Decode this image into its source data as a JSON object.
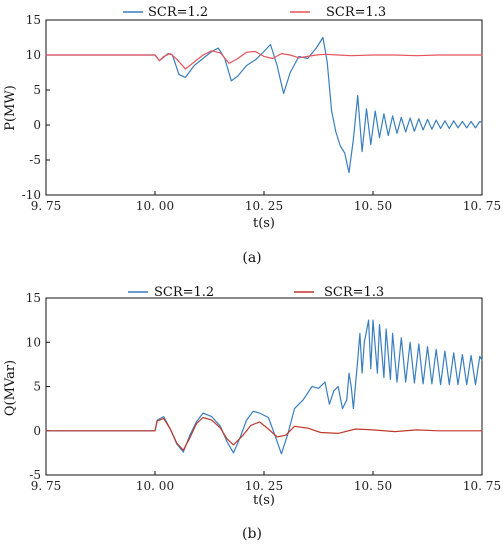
{
  "chart_data": [
    {
      "type": "line",
      "caption": "(a)",
      "xlabel": "t(s)",
      "ylabel": "P(MW)",
      "xlim": [
        9.75,
        10.75
      ],
      "ylim": [
        -10,
        15
      ],
      "xticks": [
        9.75,
        10.0,
        10.25,
        10.5,
        10.75
      ],
      "xtick_labels": [
        "9. 75",
        "10. 00",
        "10. 25",
        "10. 50",
        "10. 75"
      ],
      "yticks": [
        -10,
        -5,
        0,
        5,
        10,
        15
      ],
      "legend_position": "top",
      "series": [
        {
          "name": "SCR=1.2",
          "color": "#3a7ebf",
          "x": [
            9.75,
            10.0,
            10.01,
            10.02,
            10.03,
            10.04,
            10.055,
            10.07,
            10.09,
            10.11,
            10.13,
            10.145,
            10.16,
            10.175,
            10.19,
            10.21,
            10.23,
            10.25,
            10.265,
            10.28,
            10.295,
            10.31,
            10.33,
            10.35,
            10.37,
            10.385,
            10.395,
            10.405,
            10.415,
            10.425,
            10.435,
            10.445,
            10.455,
            10.465,
            10.475,
            10.485,
            10.495,
            10.505,
            10.515,
            10.525,
            10.535,
            10.545,
            10.555,
            10.565,
            10.575,
            10.585,
            10.595,
            10.605,
            10.615,
            10.625,
            10.635,
            10.645,
            10.655,
            10.665,
            10.675,
            10.685,
            10.695,
            10.705,
            10.715,
            10.725,
            10.735,
            10.745,
            10.75
          ],
          "y": [
            10.0,
            10.0,
            9.2,
            9.7,
            10.2,
            10.0,
            7.2,
            6.8,
            8.5,
            9.5,
            10.5,
            11.0,
            9.5,
            6.3,
            7.0,
            8.5,
            9.3,
            10.5,
            11.5,
            8.5,
            4.5,
            7.5,
            9.8,
            9.5,
            11.0,
            12.5,
            9.0,
            2.0,
            -1.0,
            -3.0,
            -4.0,
            -6.8,
            -2.0,
            4.2,
            -3.8,
            2.3,
            -2.8,
            2.0,
            -1.8,
            1.6,
            -1.5,
            1.3,
            -1.2,
            1.1,
            -1.0,
            1.0,
            -0.9,
            0.9,
            -0.7,
            0.8,
            -0.6,
            0.7,
            -0.5,
            0.6,
            -0.5,
            0.6,
            -0.4,
            0.5,
            -0.4,
            0.5,
            -0.4,
            0.5,
            0.3
          ]
        },
        {
          "name": "SCR=1.3",
          "color": "#e8535a",
          "x": [
            9.75,
            10.0,
            10.01,
            10.02,
            10.035,
            10.05,
            10.07,
            10.09,
            10.11,
            10.13,
            10.15,
            10.17,
            10.19,
            10.21,
            10.23,
            10.25,
            10.27,
            10.29,
            10.31,
            10.33,
            10.35,
            10.37,
            10.39,
            10.42,
            10.45,
            10.5,
            10.55,
            10.6,
            10.65,
            10.7,
            10.75
          ],
          "y": [
            10.0,
            10.0,
            9.2,
            9.8,
            10.2,
            9.4,
            8.0,
            9.0,
            10.0,
            10.6,
            10.3,
            8.8,
            9.5,
            10.4,
            10.5,
            9.8,
            9.5,
            10.2,
            10.0,
            9.6,
            9.8,
            10.0,
            10.1,
            10.0,
            9.9,
            10.0,
            10.0,
            9.9,
            10.0,
            10.0,
            10.0
          ]
        }
      ]
    },
    {
      "type": "line",
      "caption": "(b)",
      "xlabel": "t(s)",
      "ylabel": "Q(MVar)",
      "xlim": [
        9.75,
        10.75
      ],
      "ylim": [
        -5,
        15
      ],
      "xticks": [
        9.75,
        10.0,
        10.25,
        10.5,
        10.75
      ],
      "xtick_labels": [
        "9. 75",
        "10. 00",
        "10. 25",
        "10. 50",
        "10. 75"
      ],
      "yticks": [
        -5,
        0,
        5,
        10,
        15
      ],
      "legend_position": "top",
      "series": [
        {
          "name": "SCR=1.2",
          "color": "#3a7ebf",
          "x": [
            9.75,
            10.0,
            10.005,
            10.02,
            10.035,
            10.05,
            10.065,
            10.08,
            10.095,
            10.11,
            10.13,
            10.15,
            10.165,
            10.18,
            10.195,
            10.21,
            10.225,
            10.24,
            10.26,
            10.275,
            10.29,
            10.305,
            10.32,
            10.34,
            10.36,
            10.375,
            10.39,
            10.4,
            10.41,
            10.42,
            10.43,
            10.44,
            10.445,
            10.45,
            10.455,
            10.465,
            10.47,
            10.475,
            10.48,
            10.49,
            10.495,
            10.5,
            10.51,
            10.515,
            10.525,
            10.53,
            10.54,
            10.545,
            10.555,
            10.565,
            10.575,
            10.585,
            10.595,
            10.605,
            10.615,
            10.625,
            10.635,
            10.645,
            10.655,
            10.665,
            10.675,
            10.685,
            10.695,
            10.705,
            10.715,
            10.725,
            10.735,
            10.745,
            10.75
          ],
          "y": [
            0.0,
            0.0,
            1.2,
            1.6,
            0.2,
            -1.5,
            -2.4,
            -0.5,
            1.0,
            2.0,
            1.6,
            0.5,
            -1.2,
            -2.5,
            -0.8,
            1.2,
            2.2,
            2.0,
            1.5,
            -0.5,
            -2.6,
            -0.3,
            2.5,
            3.5,
            5.0,
            4.8,
            5.5,
            3.0,
            4.5,
            5.0,
            2.5,
            3.5,
            6.5,
            5.0,
            2.5,
            8.0,
            11.0,
            6.5,
            10.0,
            12.5,
            7.0,
            12.5,
            6.5,
            12.0,
            6.0,
            11.5,
            5.8,
            11.0,
            5.5,
            10.5,
            5.5,
            10.0,
            5.4,
            9.8,
            5.3,
            9.5,
            5.3,
            9.2,
            5.2,
            9.0,
            5.2,
            8.8,
            5.2,
            8.6,
            5.2,
            8.5,
            5.2,
            8.4,
            8.0
          ]
        },
        {
          "name": "SCR=1.3",
          "color": "#c0392b",
          "x": [
            9.75,
            10.0,
            10.005,
            10.02,
            10.035,
            10.05,
            10.065,
            10.08,
            10.095,
            10.11,
            10.13,
            10.15,
            10.165,
            10.18,
            10.2,
            10.22,
            10.24,
            10.26,
            10.28,
            10.3,
            10.32,
            10.35,
            10.38,
            10.42,
            10.46,
            10.5,
            10.55,
            10.6,
            10.65,
            10.7,
            10.75
          ],
          "y": [
            0.0,
            0.0,
            1.1,
            1.4,
            0.2,
            -1.4,
            -2.2,
            -0.8,
            0.8,
            1.5,
            1.2,
            0.3,
            -0.9,
            -1.6,
            -0.6,
            0.6,
            1.0,
            0.2,
            -0.7,
            -0.5,
            0.5,
            0.3,
            -0.2,
            -0.3,
            0.2,
            0.1,
            -0.1,
            0.1,
            0.0,
            0.0,
            0.0
          ]
        }
      ]
    }
  ]
}
